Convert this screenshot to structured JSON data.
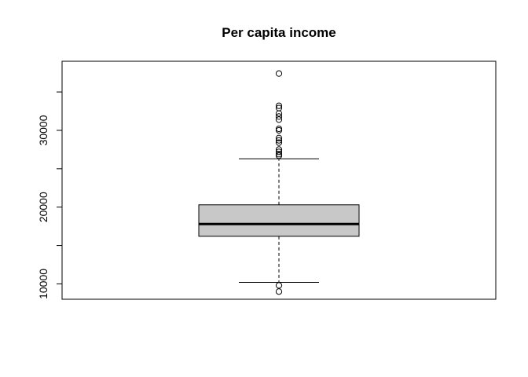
{
  "chart_data": {
    "type": "boxplot",
    "title": "Per capita income",
    "xlabel": "",
    "ylabel": "",
    "ylim": [
      8000,
      39000
    ],
    "yticks": [
      10000,
      15000,
      20000,
      25000,
      30000,
      35000
    ],
    "ytick_labels": [
      "10000",
      "",
      "20000",
      "",
      "30000",
      ""
    ],
    "box": {
      "whisker_low": 10200,
      "q1": 16200,
      "median": 17800,
      "q3": 20300,
      "whisker_high": 26300
    },
    "outliers": [
      37400,
      33200,
      32900,
      32200,
      31800,
      31400,
      30200,
      30000,
      29000,
      28700,
      28400,
      27500,
      27200,
      26900,
      26700,
      9800,
      9000
    ],
    "colors": {
      "box_fill": "#c8c8c8",
      "stroke": "#000000",
      "background": "#ffffff"
    }
  }
}
